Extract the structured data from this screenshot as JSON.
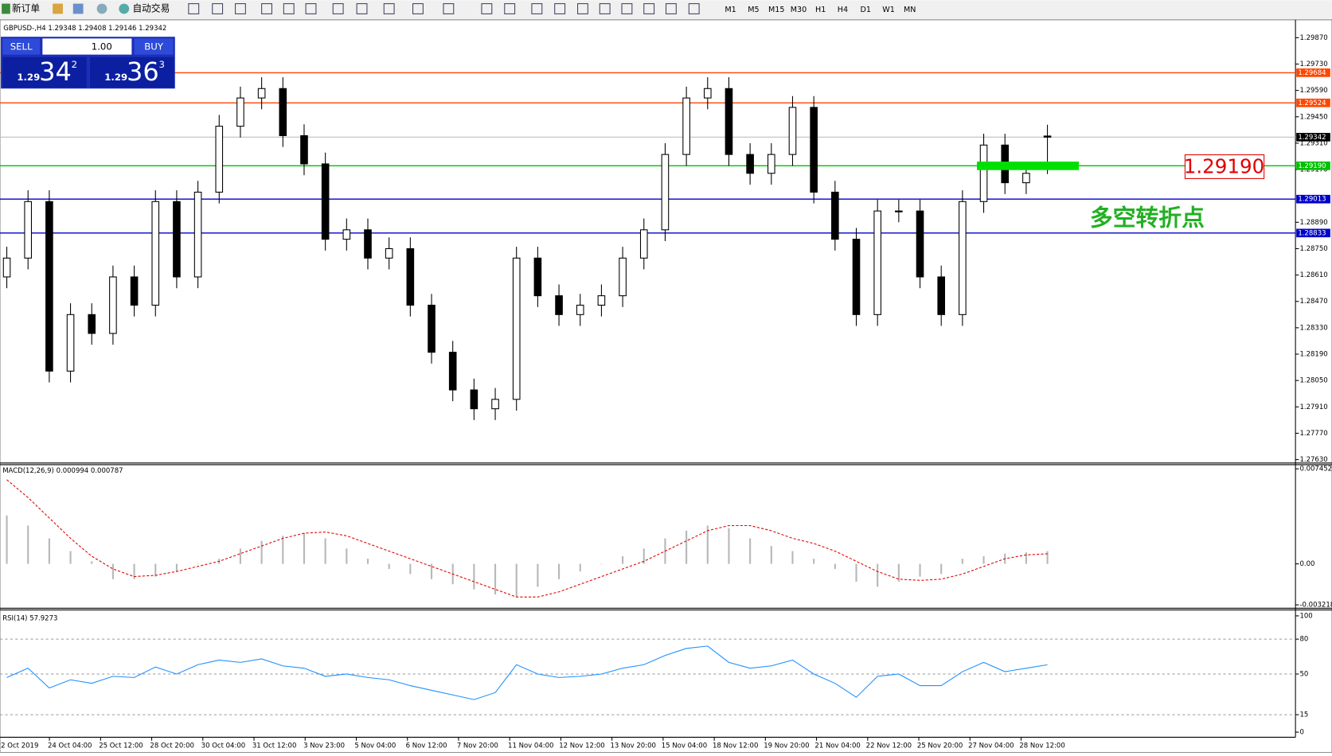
{
  "toolbar": {
    "new_order": "新订单",
    "auto_trading": "自动交易",
    "timeframes": [
      "M1",
      "M5",
      "M15",
      "M30",
      "H1",
      "H4",
      "D1",
      "W1",
      "MN"
    ]
  },
  "trade_panel": {
    "sell": "SELL",
    "lots": "1.00",
    "buy": "BUY",
    "bid": {
      "big": "1.29",
      "pips": "34",
      "point": "2"
    },
    "ask": {
      "big": "1.29",
      "pips": "36",
      "point": "3"
    }
  },
  "time_axis": [
    "22 Oct 2019",
    "24 Oct 04:00",
    "25 Oct 12:00",
    "28 Oct 20:00",
    "30 Oct 04:00",
    "31 Oct 12:00",
    "3 Nov 23:00",
    "5 Nov 04:00",
    "6 Nov 12:00",
    "7 Nov 20:00",
    "11 Nov 04:00",
    "12 Nov 12:00",
    "13 Nov 20:00",
    "15 Nov 04:00",
    "18 Nov 12:00",
    "19 Nov 20:00",
    "21 Nov 04:00",
    "22 Nov 12:00",
    "25 Nov 20:00",
    "27 Nov 04:00",
    "28 Nov 12:00"
  ],
  "chart_data": [
    {
      "type": "candlestick",
      "title": "GBPUSD-,H4  1.29348 1.29408 1.29146 1.29342",
      "open": [
        1.286,
        1.287,
        1.29,
        1.281,
        1.284,
        1.283,
        1.286,
        1.2845,
        1.29,
        1.286,
        1.2905,
        1.294,
        1.2955,
        1.296,
        1.2935,
        1.292,
        1.288,
        1.2885,
        1.287,
        1.2875,
        1.2845,
        1.282,
        1.28,
        1.279,
        1.2795,
        1.287,
        1.285,
        1.284,
        1.2845,
        1.285,
        1.287,
        1.2885,
        1.2925,
        1.2955,
        1.296,
        1.2925,
        1.2915,
        1.2925,
        1.295,
        1.2905,
        1.288,
        1.284,
        1.2895,
        1.2895,
        1.286,
        1.284,
        1.29,
        1.293,
        1.291,
        1.29348
      ],
      "high": [
        1.2876,
        1.2906,
        1.2906,
        1.2846,
        1.2846,
        1.2866,
        1.2866,
        1.2906,
        1.2906,
        1.2911,
        1.2946,
        1.2961,
        1.2966,
        1.2966,
        1.2941,
        1.2926,
        1.2891,
        1.2891,
        1.2881,
        1.2881,
        1.2851,
        1.2826,
        1.2806,
        1.2801,
        1.2876,
        1.2876,
        1.2856,
        1.2851,
        1.2856,
        1.2876,
        1.2891,
        1.2931,
        1.2961,
        1.2966,
        1.2966,
        1.2931,
        1.2931,
        1.2956,
        1.2956,
        1.2911,
        1.2886,
        1.2901,
        1.2901,
        1.2901,
        1.2866,
        1.2906,
        1.2936,
        1.2936,
        1.2921,
        1.29408
      ],
      "low": [
        1.2854,
        1.2864,
        1.2804,
        1.2804,
        1.2824,
        1.2824,
        1.2839,
        1.2839,
        1.2854,
        1.2854,
        1.2899,
        1.2934,
        1.2949,
        1.2929,
        1.2914,
        1.2874,
        1.2874,
        1.2864,
        1.2864,
        1.2839,
        1.2814,
        1.2794,
        1.2784,
        1.2784,
        1.2789,
        1.2844,
        1.2834,
        1.2834,
        1.2839,
        1.2844,
        1.2864,
        1.2879,
        1.2919,
        1.2949,
        1.2919,
        1.2909,
        1.2909,
        1.2919,
        1.2899,
        1.2874,
        1.2834,
        1.2834,
        1.2889,
        1.2854,
        1.2834,
        1.2834,
        1.2894,
        1.2904,
        1.2904,
        1.29146
      ],
      "close": [
        1.287,
        1.29,
        1.281,
        1.284,
        1.283,
        1.286,
        1.2845,
        1.29,
        1.286,
        1.2905,
        1.294,
        1.2955,
        1.296,
        1.2935,
        1.292,
        1.288,
        1.2885,
        1.287,
        1.2875,
        1.2845,
        1.282,
        1.28,
        1.279,
        1.2795,
        1.287,
        1.285,
        1.284,
        1.2845,
        1.285,
        1.287,
        1.2885,
        1.2925,
        1.2955,
        1.296,
        1.2925,
        1.2915,
        1.2925,
        1.295,
        1.2905,
        1.288,
        1.284,
        1.2895,
        1.2895,
        1.286,
        1.284,
        1.29,
        1.293,
        1.291,
        1.2915,
        1.29342
      ],
      "ylim": [
        1.27612,
        1.29956
      ],
      "yticks": [
        {
          "value": 1.2987,
          "label": "1.29870"
        },
        {
          "value": 1.2973,
          "label": "1.29730"
        },
        {
          "value": 1.2959,
          "label": "1.29590"
        },
        {
          "value": 1.2945,
          "label": "1.29450"
        },
        {
          "value": 1.2931,
          "label": "1.29310"
        },
        {
          "value": 1.2917,
          "label": "1.29170"
        },
        {
          "value": 1.2889,
          "label": "1.28890"
        },
        {
          "value": 1.2875,
          "label": "1.28750"
        },
        {
          "value": 1.2861,
          "label": "1.28610"
        },
        {
          "value": 1.2847,
          "label": "1.28470"
        },
        {
          "value": 1.2833,
          "label": "1.28330"
        },
        {
          "value": 1.2819,
          "label": "1.28190"
        },
        {
          "value": 1.2805,
          "label": "1.28050"
        },
        {
          "value": 1.2791,
          "label": "1.27910"
        },
        {
          "value": 1.2777,
          "label": "1.27770"
        },
        {
          "value": 1.2763,
          "label": "1.27630"
        }
      ],
      "levels": [
        {
          "value": 1.29684,
          "label": "1.29684",
          "color": "#ff4500"
        },
        {
          "value": 1.29524,
          "label": "1.29524",
          "color": "#ff4500"
        },
        {
          "value": 1.2919,
          "label": "1.29190",
          "color": "#00c000"
        },
        {
          "value": 1.29013,
          "label": "1.29013",
          "color": "#0000cc"
        },
        {
          "value": 1.28833,
          "label": "1.28833",
          "color": "#0000cc"
        }
      ],
      "current_price": {
        "value": 1.29342,
        "label": "1.29342"
      },
      "annotations": [
        {
          "value": 1.2919,
          "label": "1.29190"
        },
        {
          "text": "多空转折点"
        }
      ]
    },
    {
      "type": "macd",
      "title": "MACD(12,26,9) 0.000994 0.000787",
      "histogram": [
        0.0038,
        0.003,
        0.002,
        0.001,
        0.0002,
        -0.0012,
        -0.0012,
        -0.001,
        -0.0006,
        0.0,
        0.0004,
        0.0012,
        0.0018,
        0.0022,
        0.0024,
        0.002,
        0.0012,
        0.0004,
        -0.0004,
        -0.0008,
        -0.0012,
        -0.0016,
        -0.002,
        -0.0024,
        -0.0026,
        -0.0018,
        -0.0012,
        -0.0006,
        0.0,
        0.0006,
        0.0012,
        0.002,
        0.0026,
        0.003,
        0.0028,
        0.002,
        0.0014,
        0.001,
        0.0004,
        -0.0004,
        -0.0014,
        -0.0018,
        -0.0014,
        -0.001,
        -0.0008,
        0.0004,
        0.0006,
        0.0008,
        0.0009,
        0.000994
      ],
      "signal": [
        0.0066,
        0.0052,
        0.0036,
        0.002,
        0.0006,
        -0.0004,
        -0.001,
        -0.0009,
        -0.0006,
        -0.0002,
        0.0002,
        0.0008,
        0.0014,
        0.002,
        0.0024,
        0.0025,
        0.0022,
        0.0016,
        0.001,
        0.0004,
        -0.0002,
        -0.0008,
        -0.0014,
        -0.002,
        -0.0026,
        -0.0026,
        -0.0022,
        -0.0016,
        -0.001,
        -0.0004,
        0.0002,
        0.001,
        0.0018,
        0.0026,
        0.003,
        0.003,
        0.0026,
        0.002,
        0.0016,
        0.001,
        0.0002,
        -0.0006,
        -0.0012,
        -0.0013,
        -0.0012,
        -0.0008,
        -0.0002,
        0.0004,
        0.0007,
        0.000787
      ],
      "ylim": [
        -0.00348,
        0.00771
      ],
      "yticks": [
        0.007452,
        {
          "value": 0,
          "label": "0.00"
        },
        -0.003218
      ]
    },
    {
      "type": "line",
      "title": "RSI(14) 57.9273",
      "values": [
        47,
        55,
        38,
        45,
        42,
        48,
        47,
        56,
        50,
        58,
        62,
        60,
        63,
        57,
        55,
        48,
        50,
        47,
        45,
        40,
        36,
        32,
        28,
        34,
        58,
        50,
        47,
        48,
        50,
        55,
        58,
        66,
        72,
        74,
        60,
        55,
        57,
        62,
        50,
        42,
        30,
        48,
        50,
        40,
        40,
        52,
        60,
        52,
        55,
        57.9273
      ],
      "color": "#1e90ff",
      "ylim": [
        -4.4,
        104.4
      ],
      "yticks": [
        100,
        80,
        50,
        15,
        0
      ],
      "dashed_levels": [
        80,
        50,
        15
      ]
    }
  ]
}
